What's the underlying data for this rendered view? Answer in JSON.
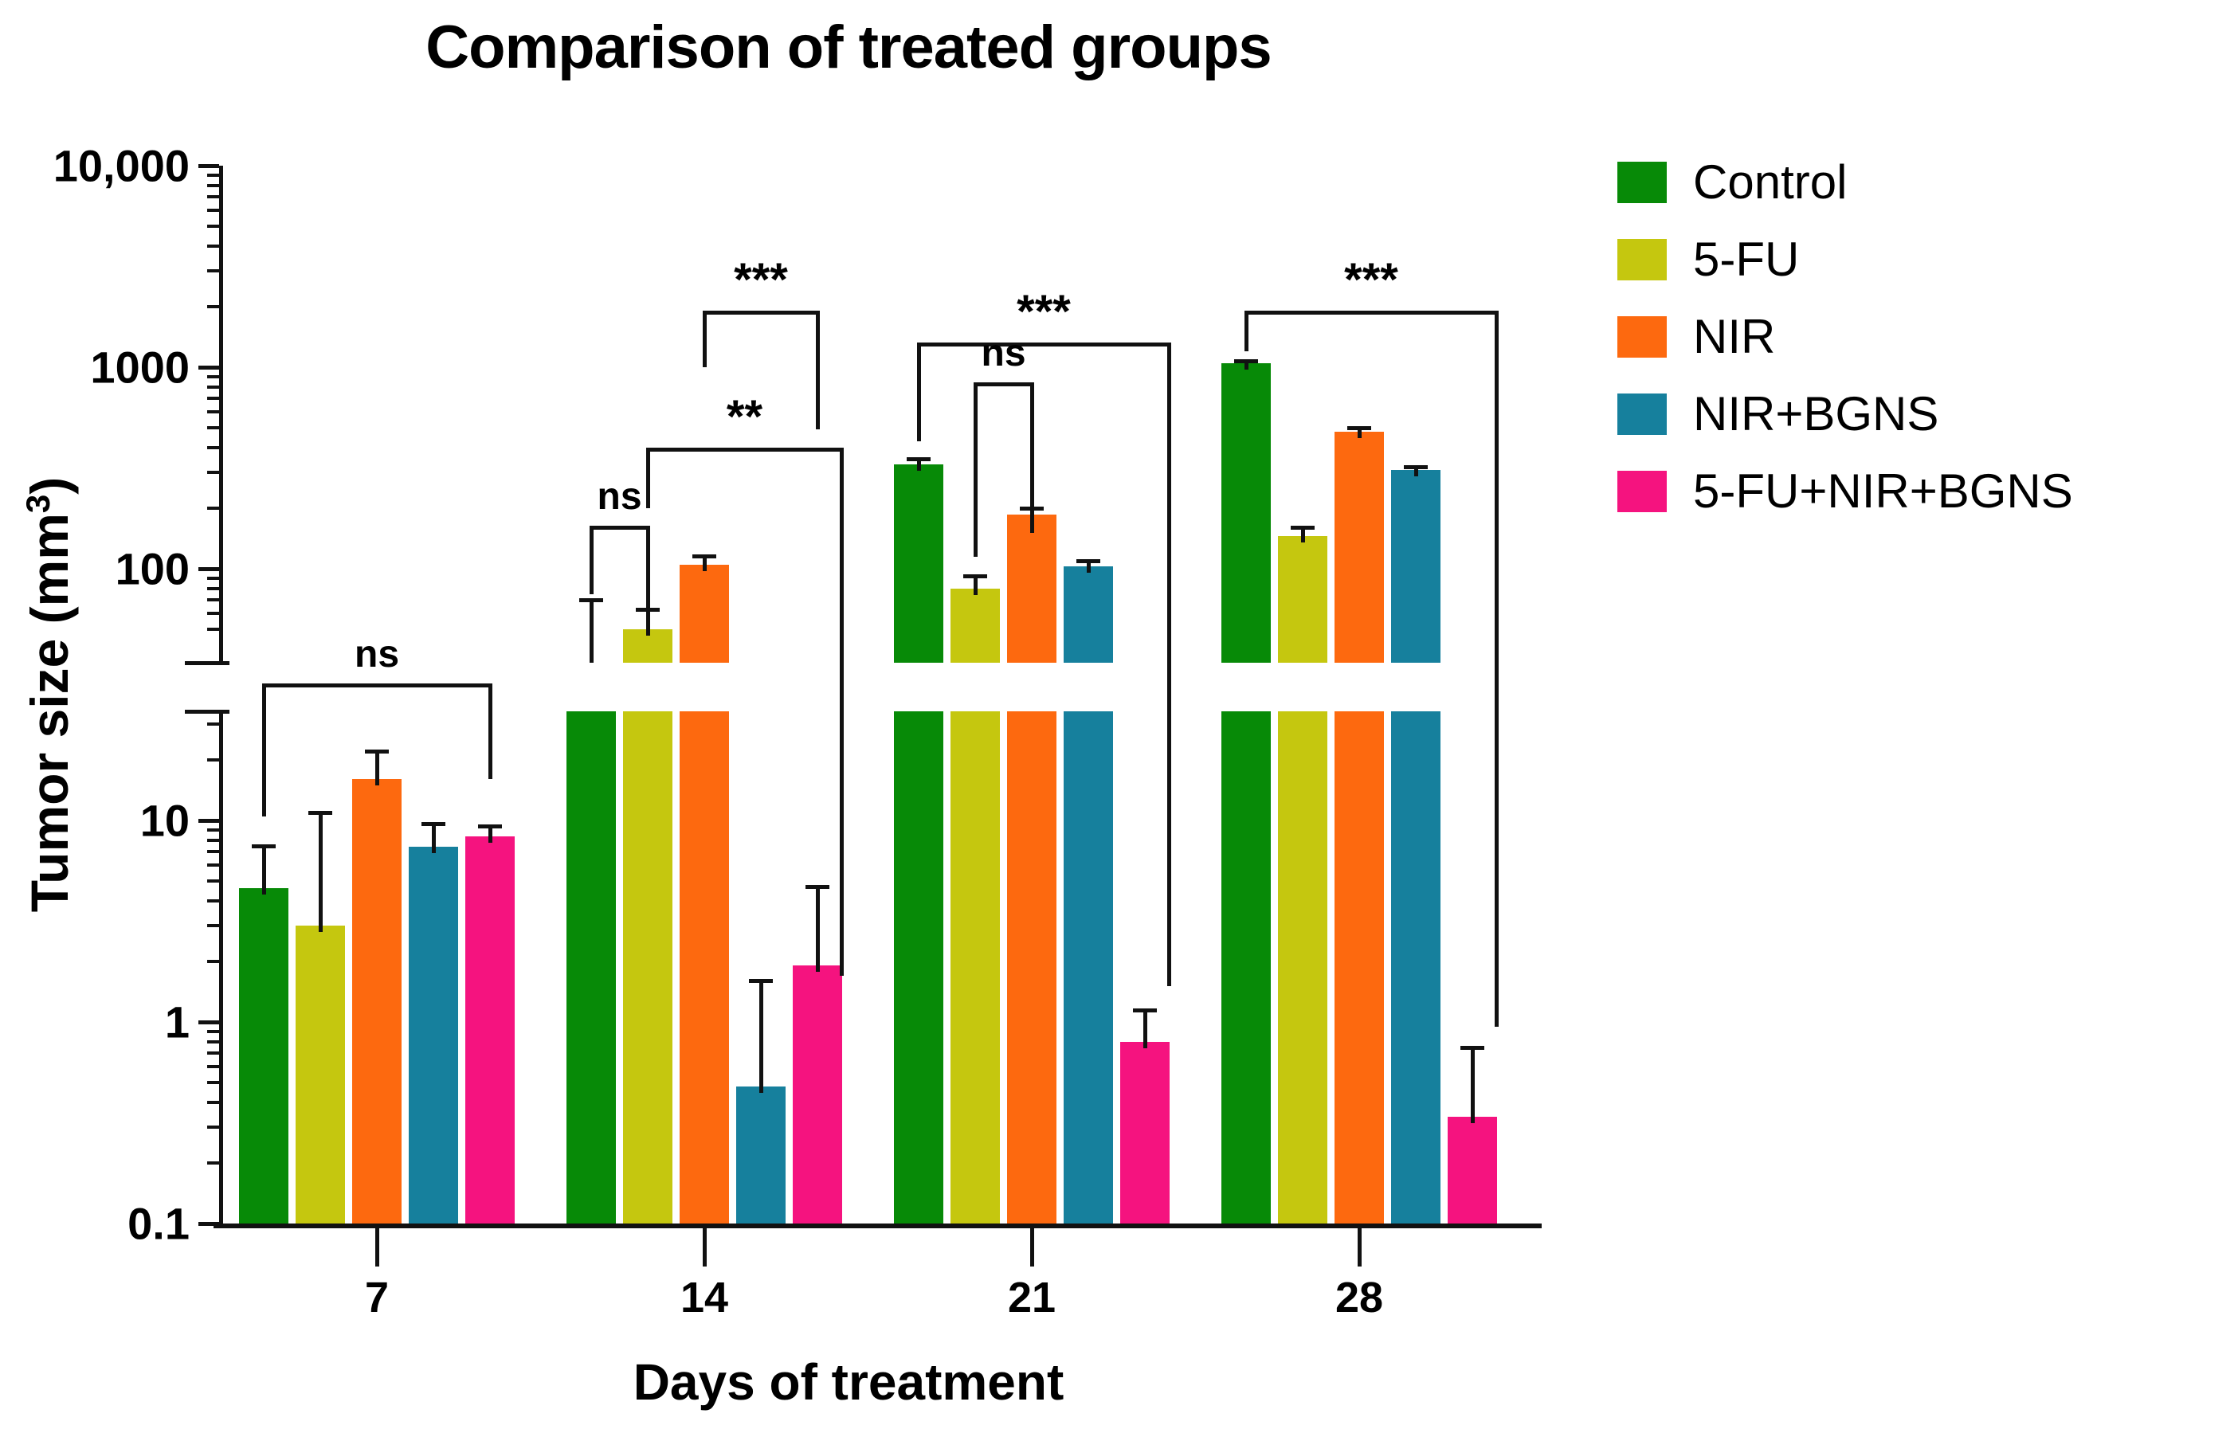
{
  "title": "Comparison of treated groups",
  "y_axis": {
    "label_prefix": "Tumor size (mm",
    "label_sup": "3",
    "label_suffix": ")",
    "upper_major_ticks": [
      {
        "label": "10,000",
        "value": 10000
      },
      {
        "label": "1000",
        "value": 1000
      },
      {
        "label": "100",
        "value": 100
      }
    ],
    "lower_major_ticks": [
      {
        "label": "10",
        "value": 10
      },
      {
        "label": "1",
        "value": 1
      },
      {
        "label": "0.1",
        "value": 0.1
      }
    ]
  },
  "x_axis": {
    "label": "Days of treatment",
    "tick_labels": [
      "7",
      "14",
      "21",
      "28"
    ]
  },
  "legend": [
    {
      "label": "Control",
      "color": "#078a07"
    },
    {
      "label": "5-FU",
      "color": "#c5c70f"
    },
    {
      "label": "NIR",
      "color": "#fd690f"
    },
    {
      "label": "NIR+BGNS",
      "color": "#16809d"
    },
    {
      "label": "5-FU+NIR+BGNS",
      "color": "#f5137f"
    }
  ],
  "chart_data": {
    "type": "bar",
    "y_scale": "log",
    "ylim": [
      0.1,
      10000
    ],
    "y_break_between": [
      34,
      40
    ],
    "grid": false,
    "legend_position": "right",
    "title": "Comparison of treated groups",
    "xlabel": "Days of treatment",
    "ylabel": "Tumor size (mm3)",
    "categories": [
      7,
      14,
      21,
      28
    ],
    "series": [
      {
        "name": "Control",
        "color": "#078a07",
        "values": [
          4.6,
          35,
          330,
          1050
        ],
        "errors_upper": [
          7.5,
          70,
          350,
          1080
        ]
      },
      {
        "name": "5-FU",
        "color": "#c5c70f",
        "values": [
          3.0,
          50,
          80,
          145
        ],
        "errors_upper": [
          11,
          63,
          92,
          160
        ]
      },
      {
        "name": "NIR",
        "color": "#fd690f",
        "values": [
          16,
          105,
          185,
          480
        ],
        "errors_upper": [
          22,
          116,
          200,
          500
        ]
      },
      {
        "name": "NIR+BGNS",
        "color": "#16809d",
        "values": [
          7.4,
          0.48,
          103,
          310
        ],
        "errors_upper": [
          9.6,
          1.6,
          110,
          320
        ]
      },
      {
        "name": "5-FU+NIR+BGNS",
        "color": "#f5137f",
        "values": [
          8.3,
          1.9,
          0.8,
          0.34
        ],
        "errors_upper": [
          9.4,
          4.7,
          1.15,
          0.75
        ]
      }
    ],
    "significance": [
      {
        "day": 7,
        "from": "Control",
        "to": "5-FU+NIR+BGNS",
        "label": "ns",
        "bar_value": 37,
        "from_leg_end": 10.5,
        "to_leg_end": 16,
        "long_right_leg": false
      },
      {
        "day": 14,
        "from": "Control",
        "to": "5-FU",
        "label": "ns",
        "bar_value": 163,
        "from_leg_end": 75,
        "to_leg_end": 57,
        "long_right_leg": false
      },
      {
        "day": 14,
        "from": "NIR",
        "to": "5-FU+NIR+BGNS",
        "label": "***",
        "bar_value": 1900,
        "from_leg_end": 1000,
        "to_leg_end": 490,
        "long_right_leg": false
      },
      {
        "day": 14,
        "from": "5-FU",
        "to": "5-FU+NIR+BGNS",
        "label": "**",
        "bar_value": 400,
        "from_leg_end": 200,
        "to_leg_end": 1.7,
        "long_right_leg": true
      },
      {
        "day": 21,
        "from": "5-FU",
        "to": "NIR",
        "label": "ns",
        "bar_value": 840,
        "from_leg_end": 115,
        "to_leg_end": 150,
        "long_right_leg": false
      },
      {
        "day": 21,
        "from": "Control",
        "to": "5-FU+NIR+BGNS",
        "label": "***",
        "bar_value": 1320,
        "from_leg_end": 430,
        "to_leg_end": 1.5,
        "long_right_leg": true
      },
      {
        "day": 28,
        "from": "Control",
        "to": "5-FU+NIR+BGNS",
        "label": "***",
        "bar_value": 1900,
        "from_leg_end": 1200,
        "to_leg_end": 0.95,
        "long_right_leg": true
      }
    ]
  }
}
